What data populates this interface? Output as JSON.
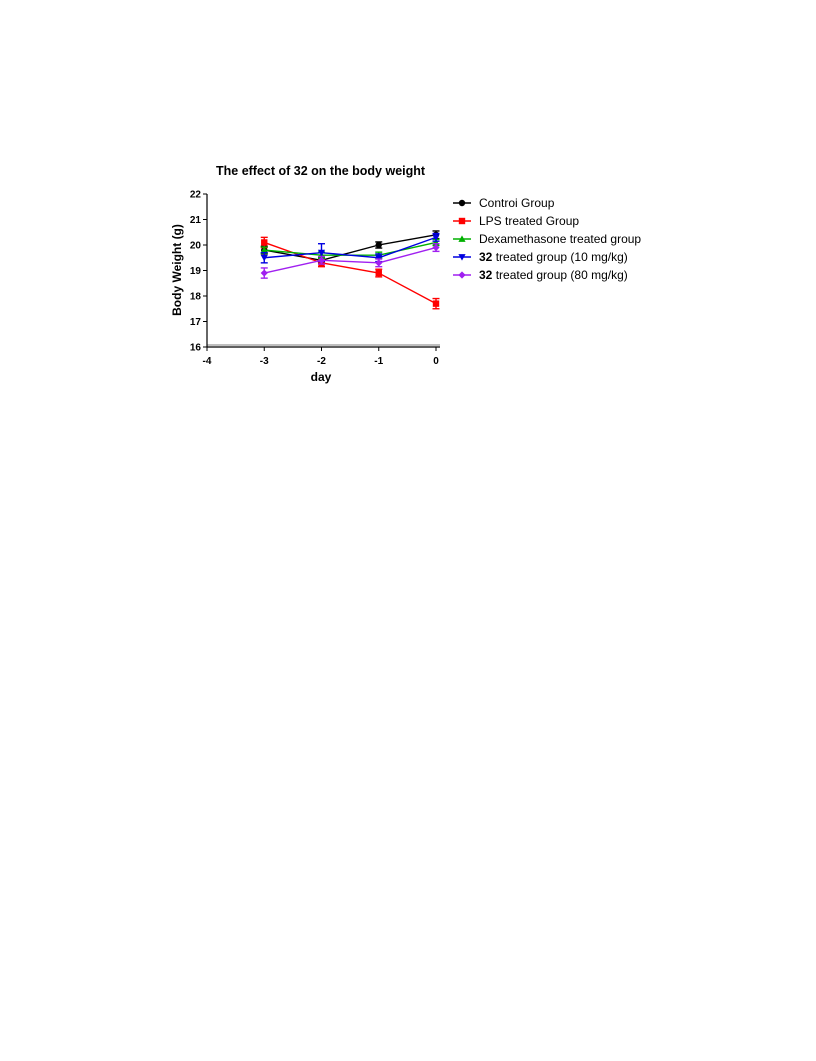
{
  "chart_data": {
    "type": "line",
    "title": {
      "prefix": "The effect of ",
      "bold": "32",
      "suffix": " on the body weight"
    },
    "xlabel": "day",
    "ylabel": "Body Weight (g)",
    "xlim": [
      -4,
      0
    ],
    "ylim": [
      16,
      22
    ],
    "xticks": [
      -4,
      -3,
      -2,
      -1,
      0
    ],
    "yticks": [
      16,
      17,
      18,
      19,
      20,
      21,
      22
    ],
    "xtick_labels": [
      "-4",
      "-3",
      "-2",
      "-1",
      "0"
    ],
    "ytick_labels": [
      "16",
      "17",
      "18",
      "19",
      "20",
      "21",
      "22"
    ],
    "legend_position": "right",
    "grid": false,
    "series": [
      {
        "name": "Controi Group",
        "name_bold": "",
        "color": "#000000",
        "marker": "circle",
        "x": [
          -3,
          -2,
          -1,
          0
        ],
        "y": [
          19.8,
          19.4,
          20.0,
          20.4
        ],
        "err": [
          0.15,
          0.12,
          0.12,
          0.15
        ]
      },
      {
        "name": "LPS treated Group",
        "name_bold": "",
        "color": "#ff0000",
        "marker": "square",
        "x": [
          -3,
          -2,
          -1,
          0
        ],
        "y": [
          20.1,
          19.3,
          18.9,
          17.7
        ],
        "err": [
          0.2,
          0.15,
          0.15,
          0.2
        ]
      },
      {
        "name": "Dexamethasone treated group",
        "name_bold": "",
        "color": "#00b000",
        "marker": "triangle-up",
        "x": [
          -3,
          -2,
          -1,
          0
        ],
        "y": [
          19.8,
          19.6,
          19.6,
          20.1
        ],
        "err": [
          0.12,
          0.12,
          0.12,
          0.12
        ]
      },
      {
        "name": " treated group (10 mg/kg)",
        "name_bold": "32",
        "color": "#0000e0",
        "marker": "triangle-down",
        "x": [
          -3,
          -2,
          -1,
          0
        ],
        "y": [
          19.5,
          19.7,
          19.5,
          20.3
        ],
        "err": [
          0.2,
          0.35,
          0.15,
          0.15
        ]
      },
      {
        "name": " treated group (80 mg/kg)",
        "name_bold": "32",
        "color": "#a020f0",
        "marker": "diamond",
        "x": [
          -3,
          -2,
          -1,
          0
        ],
        "y": [
          18.9,
          19.4,
          19.3,
          19.9
        ],
        "err": [
          0.2,
          0.15,
          0.15,
          0.15
        ]
      }
    ]
  }
}
